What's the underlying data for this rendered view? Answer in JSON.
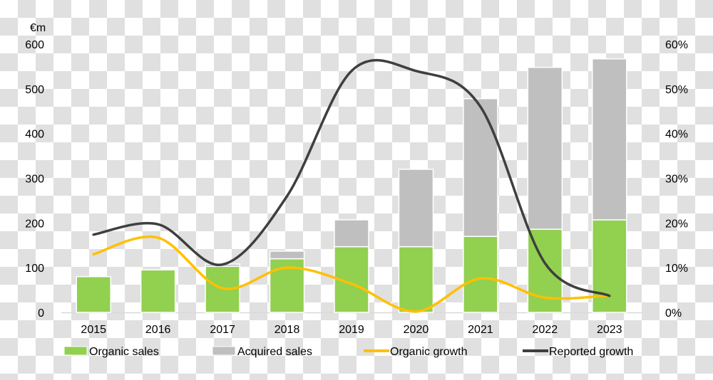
{
  "chart_data": {
    "type": "bar",
    "categories": [
      "2015",
      "2016",
      "2017",
      "2018",
      "2019",
      "2020",
      "2021",
      "2022",
      "2023"
    ],
    "y_unit_label": "€m",
    "ylim": [
      0,
      600
    ],
    "yticks": [
      "0",
      "100",
      "200",
      "300",
      "400",
      "500",
      "600"
    ],
    "y2lim": [
      0,
      60
    ],
    "y2ticks": [
      "0%",
      "10%",
      "20%",
      "30%",
      "40%",
      "50%",
      "60%"
    ],
    "grid": false,
    "legend_position": "bottom",
    "series": [
      {
        "name": "Organic sales",
        "type": "bar",
        "stack": "sales",
        "color": "#92d050",
        "values": [
          80,
          95,
          103,
          120,
          147,
          147,
          170,
          186,
          207
        ]
      },
      {
        "name": "Acquired sales",
        "type": "bar",
        "stack": "sales",
        "color": "#bfbfbf",
        "values": [
          0,
          0,
          5,
          17,
          60,
          173,
          308,
          362,
          360
        ]
      },
      {
        "name": "Organic growth",
        "type": "line",
        "axis": "right",
        "color": "#ffc000",
        "values": [
          13,
          16.7,
          5.4,
          10,
          6.4,
          0.2,
          7.6,
          3.3,
          3.8
        ]
      },
      {
        "name": "Reported growth",
        "type": "line",
        "axis": "right",
        "color": "#3f3f3f",
        "values": [
          17.4,
          19.7,
          10.7,
          26,
          54,
          54,
          46,
          11,
          3.7
        ]
      }
    ]
  }
}
